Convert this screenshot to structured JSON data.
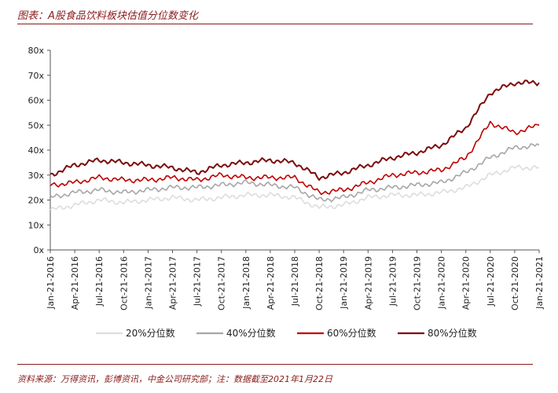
{
  "header": {
    "title": "图表：A股食品饮料板块估值分位数变化"
  },
  "footer": {
    "source": "资料来源：万得资讯，彭博资讯，中金公司研究部；注：数据截至2021年1月22日"
  },
  "colors": {
    "brand": "#8b1a1a",
    "p20": "#dddddd",
    "p40": "#a6a6a6",
    "p60": "#c00000",
    "p80": "#7b0c0c"
  },
  "chart_data": {
    "type": "line",
    "title": "",
    "xlabel": "",
    "ylabel": "",
    "ylim": [
      0,
      80
    ],
    "yticks": [
      "0x",
      "10x",
      "20x",
      "30x",
      "40x",
      "50x",
      "60x",
      "70x",
      "80x"
    ],
    "grid": false,
    "legend_position": "bottom",
    "x": [
      "Jan-21-2016",
      "Apr-21-2016",
      "Jul-21-2016",
      "Oct-21-2016",
      "Jan-21-2017",
      "Apr-21-2017",
      "Jul-21-2017",
      "Oct-21-2017",
      "Jan-21-2018",
      "Apr-21-2018",
      "Jul-21-2018",
      "Oct-21-2018",
      "Jan-21-2019",
      "Apr-21-2019",
      "Jul-21-2019",
      "Oct-21-2019",
      "Jan-21-2020",
      "Apr-21-2020",
      "Jul-21-2020",
      "Oct-21-2020",
      "Jan-21-2021"
    ],
    "series": [
      {
        "name": "20%分位数",
        "color": "#dddddd",
        "values": [
          16,
          18,
          20,
          19,
          20,
          21,
          20,
          21,
          22,
          22,
          21,
          17,
          18,
          21,
          22,
          22,
          23,
          25,
          30,
          33,
          33
        ]
      },
      {
        "name": "40%分位数",
        "color": "#a6a6a6",
        "values": [
          21,
          23,
          24,
          23,
          24,
          25,
          25,
          26,
          27,
          26,
          25,
          20,
          21,
          24,
          25,
          26,
          27,
          31,
          37,
          41,
          42
        ]
      },
      {
        "name": "60%分位数",
        "color": "#c00000",
        "values": [
          26,
          27,
          29,
          28,
          28,
          29,
          28,
          30,
          29,
          29,
          29,
          23,
          24,
          27,
          30,
          31,
          32,
          37,
          51,
          47,
          50
        ]
      },
      {
        "name": "80%分位数",
        "color": "#7b0c0c",
        "values": [
          30,
          34,
          36,
          35,
          34,
          33,
          31,
          34,
          35,
          36,
          35,
          29,
          31,
          34,
          37,
          39,
          42,
          49,
          63,
          67,
          67
        ]
      }
    ]
  }
}
